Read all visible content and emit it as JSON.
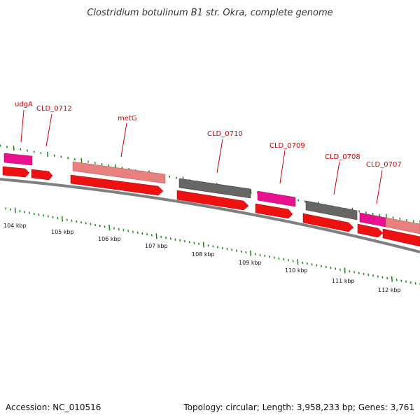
{
  "title": "Clostridium botulinum B1 str. Okra, complete genome",
  "footer": {
    "accession": "Accession: NC_010516",
    "summary": "Topology: circular; Length: 3,958,233 bp; Genes: 3,761"
  },
  "colors": {
    "backbone": "#7f7f7f",
    "tick": "#118811",
    "label": "#cc0000",
    "cds": "#ee1111",
    "gene_pink": "#e8118e",
    "gene_salmon": "#e98080",
    "gene_gray": "#666666"
  },
  "coordinate_ticks": [
    "104 kbp",
    "105 kbp",
    "106 kbp",
    "107 kbp",
    "108 kbp",
    "109 kbp",
    "110 kbp",
    "111 kbp",
    "112 kbp"
  ],
  "gene_labels": [
    "udgA",
    "CLD_0712",
    "metG",
    "CLD_0710",
    "CLD_0709",
    "CLD_0708",
    "CLD_0707"
  ]
}
